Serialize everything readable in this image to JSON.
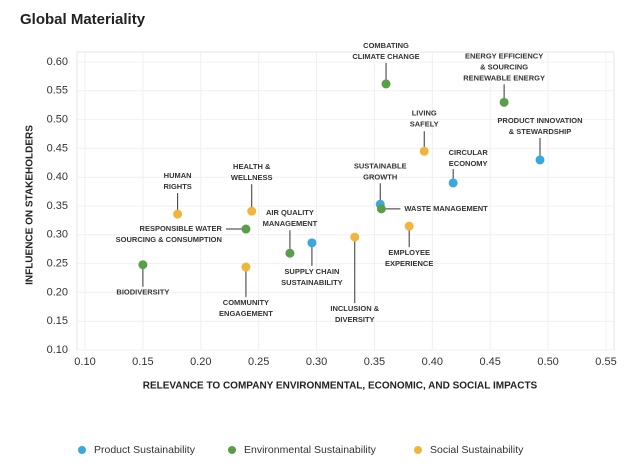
{
  "chart_data": {
    "type": "scatter",
    "title": "Global Materiality",
    "x_label": "RELEVANCE TO COMPANY ENVIRONMENTAL, ECONOMIC, AND SOCIAL IMPACTS",
    "y_label": "INFLUENCE ON STAKEHOLDERS",
    "xlim": [
      0.1,
      0.55
    ],
    "ylim": [
      0.1,
      0.6
    ],
    "xticks": [
      {
        "value": 0.1,
        "label": "0.10"
      },
      {
        "value": 0.15,
        "label": "0.15"
      },
      {
        "value": 0.2,
        "label": "0.20"
      },
      {
        "value": 0.25,
        "label": "0.25"
      },
      {
        "value": 0.3,
        "label": "0.30"
      },
      {
        "value": 0.35,
        "label": "0.35"
      },
      {
        "value": 0.4,
        "label": "0.40"
      },
      {
        "value": 0.45,
        "label": "0.45"
      },
      {
        "value": 0.5,
        "label": "0.50"
      },
      {
        "value": 0.55,
        "label": "0.55"
      }
    ],
    "yticks": [
      {
        "value": 0.1,
        "label": "0.10"
      },
      {
        "value": 0.15,
        "label": "0.15"
      },
      {
        "value": 0.2,
        "label": "0.20"
      },
      {
        "value": 0.25,
        "label": "0.25"
      },
      {
        "value": 0.3,
        "label": "0.30"
      },
      {
        "value": 0.35,
        "label": "0.35"
      },
      {
        "value": 0.4,
        "label": "0.40"
      },
      {
        "value": 0.45,
        "label": "0.45"
      },
      {
        "value": 0.5,
        "label": "0.50"
      },
      {
        "value": 0.55,
        "label": "0.55"
      },
      {
        "value": 0.6,
        "label": "0.60"
      }
    ],
    "grid": true,
    "legend": "bottom",
    "series": [
      {
        "name": "Product Sustainability",
        "color": "#3aa8dc",
        "x": [
          0.355,
          0.418,
          0.493,
          0.296
        ],
        "values": [
          0.353,
          0.39,
          0.43,
          0.286
        ],
        "labels": [
          [
            "SUSTAINABLE",
            "GROWTH"
          ],
          [
            "CIRCULAR",
            "ECONOMY"
          ],
          [
            "PRODUCT INNOVATION",
            "& STEWARDSHIP"
          ],
          [
            "SUPPLY CHAIN",
            "SUSTAINABILITY"
          ]
        ]
      },
      {
        "name": "Environmental Sustainability",
        "color": "#5a9e4a",
        "x": [
          0.36,
          0.462,
          0.356,
          0.277,
          0.239,
          0.15
        ],
        "values": [
          0.562,
          0.53,
          0.345,
          0.268,
          0.31,
          0.248
        ],
        "labels": [
          [
            "COMBATING",
            "CLIMATE CHANGE"
          ],
          [
            "ENERGY EFFICIENCY",
            "& SOURCING",
            "RENEWABLE ENERGY"
          ],
          [
            "WASTE MANAGEMENT"
          ],
          [
            "AIR QUALITY",
            "MANAGEMENT"
          ],
          [
            "RESPONSIBLE WATER",
            "SOURCING & CONSUMPTION"
          ],
          [
            "BIODIVERSITY"
          ]
        ]
      },
      {
        "name": "Social Sustainability",
        "color": "#f0b63c",
        "x": [
          0.393,
          0.38,
          0.333,
          0.244,
          0.239,
          0.18
        ],
        "values": [
          0.445,
          0.315,
          0.296,
          0.341,
          0.244,
          0.336
        ],
        "labels": [
          [
            "LIVING",
            "SAFELY"
          ],
          [
            "EMPLOYEE",
            "EXPERIENCE"
          ],
          [
            "INCLUSION &",
            "DIVERSITY"
          ],
          [
            "HEALTH &",
            "WELLNESS"
          ],
          [
            "COMMUNITY",
            "ENGAGEMENT"
          ],
          [
            "HUMAN",
            "RIGHTS"
          ]
        ]
      }
    ]
  }
}
